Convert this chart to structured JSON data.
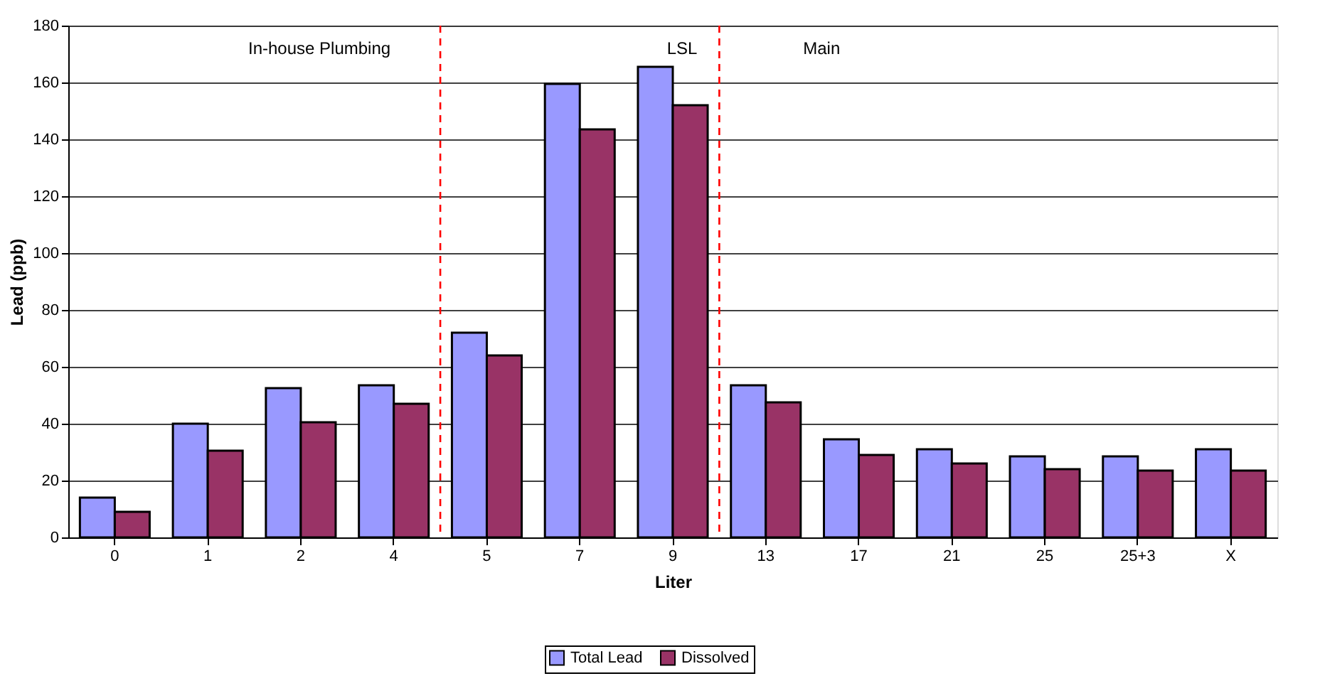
{
  "chart_data": {
    "type": "bar",
    "xlabel": "Liter",
    "ylabel": "Lead (ppb)",
    "categories": [
      "0",
      "1",
      "2",
      "4",
      "5",
      "7",
      "9",
      "13",
      "17",
      "21",
      "25",
      "25+3",
      "X"
    ],
    "series": [
      {
        "name": "Total Lead",
        "color": "#9999ff",
        "values": [
          14,
          40,
          52.5,
          53.5,
          72,
          159.5,
          165.5,
          53.5,
          34.5,
          31,
          28.5,
          28.5,
          31
        ]
      },
      {
        "name": "Dissolved",
        "color": "#993366",
        "values": [
          9,
          30.5,
          40.5,
          47,
          64,
          143.5,
          152,
          47.5,
          29,
          26,
          24,
          23.5,
          23.5
        ]
      }
    ],
    "ylim": [
      0,
      180
    ],
    "yticks": [
      0,
      20,
      40,
      60,
      80,
      100,
      120,
      140,
      160,
      180
    ],
    "grid": "y",
    "legend": "bottom",
    "annotations": [
      "In-house Plumbing",
      "LSL",
      "Main"
    ]
  }
}
